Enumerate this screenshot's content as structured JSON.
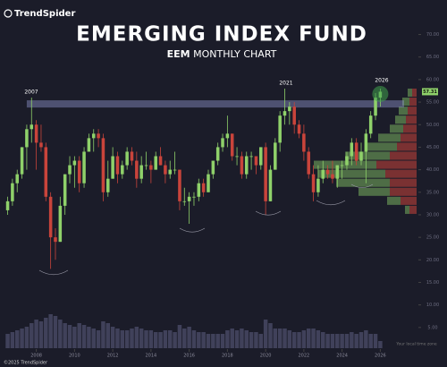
{
  "brand": "TrendSpider",
  "footer": "©2025 TrendSpider",
  "time_zone_note": "Your local time zone",
  "chart_data": {
    "type": "candlestick",
    "title": "EMERGING INDEX FUND",
    "subtitle_bold": "EEM",
    "subtitle": "MONTHLY CHART",
    "annotations": [
      "2007",
      "2021",
      "2026"
    ],
    "colors": {
      "up": "#8fd16a",
      "down": "#c9443b",
      "volume": "#4a4b66",
      "band": "#8d93c9"
    },
    "x": [
      2006.5,
      2006.75,
      2007,
      2007.25,
      2007.5,
      2007.75,
      2008,
      2008.25,
      2008.5,
      2008.75,
      2009,
      2009.25,
      2009.5,
      2009.75,
      2010,
      2010.25,
      2010.5,
      2010.75,
      2011,
      2011.25,
      2011.5,
      2011.75,
      2012,
      2012.25,
      2012.5,
      2012.75,
      2013,
      2013.25,
      2013.5,
      2013.75,
      2014,
      2014.25,
      2014.5,
      2014.75,
      2015,
      2015.25,
      2015.5,
      2015.75,
      2016,
      2016.25,
      2016.5,
      2016.75,
      2017,
      2017.25,
      2017.5,
      2017.75,
      2018,
      2018.25,
      2018.5,
      2018.75,
      2019,
      2019.25,
      2019.5,
      2019.75,
      2020,
      2020.25,
      2020.5,
      2020.75,
      2021,
      2021.25,
      2021.5,
      2021.75,
      2022,
      2022.25,
      2022.5,
      2022.75,
      2023,
      2023.25,
      2023.5,
      2023.75,
      2024,
      2024.25,
      2024.5,
      2024.75,
      2025,
      2025.25,
      2025.5,
      2025.75,
      2026
    ],
    "open": [
      31,
      33,
      37,
      39,
      45,
      49,
      50,
      46,
      45,
      34,
      25,
      24,
      32,
      39,
      41,
      42,
      37,
      44,
      47,
      48,
      47,
      35,
      38,
      43,
      39,
      41,
      44,
      42,
      38,
      41,
      41,
      40,
      43,
      41,
      39,
      40,
      40,
      33,
      33,
      34,
      34,
      37,
      35,
      39,
      42,
      45,
      47,
      48,
      43,
      43,
      39,
      43,
      43,
      41,
      45,
      33,
      40,
      46,
      52,
      53,
      54,
      50,
      48,
      44,
      39,
      35,
      38,
      40,
      39,
      38,
      41,
      41,
      43,
      46,
      42,
      44,
      48,
      52,
      56
    ],
    "high": [
      34,
      38,
      40,
      45,
      50,
      56,
      51,
      50,
      46,
      35,
      27,
      34,
      39,
      43,
      43,
      43,
      45,
      48,
      49,
      49,
      48,
      42,
      45,
      44,
      42,
      45,
      45,
      44,
      43,
      44,
      42,
      44,
      45,
      42,
      42,
      44,
      40,
      36,
      35,
      35,
      38,
      38,
      40,
      42,
      46,
      48,
      52,
      48,
      45,
      44,
      44,
      44,
      43,
      45,
      46,
      41,
      47,
      53,
      58,
      55,
      55,
      51,
      50,
      45,
      41,
      41,
      42,
      41,
      42,
      41,
      42,
      44,
      47,
      47,
      46,
      49,
      53,
      57,
      58
    ],
    "low": [
      30,
      32,
      35,
      38,
      40,
      46,
      40,
      44,
      33,
      18,
      20,
      24,
      30,
      37,
      36,
      35,
      36,
      44,
      44,
      45,
      33,
      34,
      38,
      37,
      38,
      40,
      41,
      36,
      37,
      40,
      37,
      40,
      41,
      37,
      38,
      39,
      31,
      32,
      28,
      32,
      33,
      34,
      35,
      38,
      41,
      44,
      45,
      42,
      41,
      38,
      38,
      40,
      39,
      40,
      30,
      33,
      40,
      44,
      50,
      50,
      48,
      47,
      42,
      38,
      33,
      34,
      37,
      38,
      37,
      36,
      38,
      40,
      41,
      41,
      41,
      37,
      47,
      51,
      54
    ],
    "close": [
      33,
      37,
      39,
      45,
      49,
      50,
      46,
      45,
      34,
      25,
      24,
      32,
      39,
      41,
      42,
      37,
      44,
      47,
      48,
      47,
      35,
      38,
      43,
      39,
      41,
      44,
      42,
      38,
      41,
      41,
      40,
      43,
      41,
      39,
      40,
      40,
      33,
      33,
      34,
      34,
      37,
      35,
      39,
      42,
      45,
      47,
      48,
      43,
      43,
      39,
      43,
      43,
      41,
      45,
      33,
      40,
      46,
      52,
      53,
      54,
      50,
      48,
      44,
      39,
      35,
      38,
      40,
      39,
      38,
      41,
      41,
      43,
      46,
      42,
      44,
      48,
      52,
      56,
      57.31
    ],
    "volume": [
      40,
      45,
      50,
      55,
      60,
      70,
      80,
      75,
      85,
      95,
      90,
      80,
      70,
      65,
      60,
      70,
      65,
      60,
      55,
      50,
      75,
      70,
      60,
      55,
      50,
      50,
      55,
      60,
      55,
      50,
      50,
      45,
      45,
      50,
      50,
      45,
      65,
      55,
      60,
      50,
      45,
      45,
      40,
      40,
      40,
      40,
      50,
      55,
      50,
      55,
      50,
      45,
      45,
      40,
      80,
      70,
      55,
      55,
      55,
      50,
      45,
      45,
      50,
      55,
      55,
      50,
      45,
      40,
      40,
      40,
      40,
      40,
      45,
      40,
      45,
      50,
      40,
      40,
      20
    ],
    "resistance": [
      53.8,
      55.4
    ],
    "volume_profile": {
      "bins": [
        30,
        32,
        34,
        36,
        38,
        40,
        42,
        44,
        46,
        48,
        50,
        52,
        54,
        56,
        58
      ],
      "up": [
        5,
        15,
        35,
        60,
        75,
        70,
        50,
        35,
        25,
        15,
        12,
        10,
        8,
        5
      ],
      "down": [
        8,
        18,
        30,
        30,
        35,
        45,
        30,
        22,
        18,
        15,
        12,
        10,
        8,
        5
      ]
    },
    "xlim": [
      2006.1,
      2027.9
    ],
    "xticks": [
      2008,
      2010,
      2012,
      2014,
      2016,
      2018,
      2020,
      2022,
      2024,
      2026
    ],
    "ylim": [
      0,
      71.5
    ],
    "yticks": [
      {
        "value": 5,
        "label": "5.00"
      },
      {
        "value": 10,
        "label": "10.00"
      },
      {
        "value": 15,
        "label": "15.00"
      },
      {
        "value": 20,
        "label": "20.00"
      },
      {
        "value": 25,
        "label": "25.00"
      },
      {
        "value": 30,
        "label": "30.00"
      },
      {
        "value": 35,
        "label": "35.00"
      },
      {
        "value": 40,
        "label": "40.00"
      },
      {
        "value": 45,
        "label": "45.00"
      },
      {
        "value": 50,
        "label": "50.00"
      },
      {
        "value": 55,
        "label": "55.00"
      },
      {
        "value": 60,
        "label": "60.00"
      },
      {
        "value": 65,
        "label": "65.00"
      },
      {
        "value": 70,
        "label": "70.00"
      }
    ]
  }
}
